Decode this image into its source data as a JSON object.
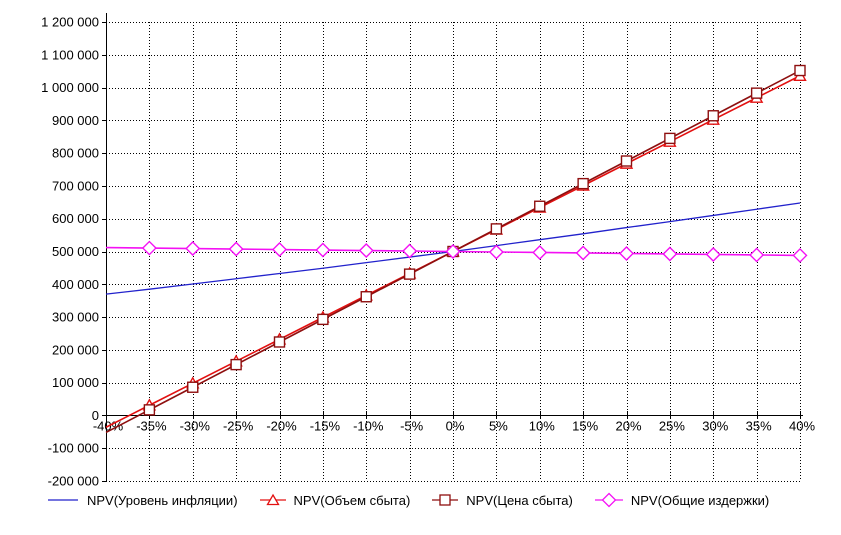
{
  "window": {
    "background": "#ffffff"
  },
  "chart_data": {
    "type": "line",
    "title": "",
    "xlabel": "",
    "ylabel": "",
    "legend_position": "bottom",
    "grid": {
      "horizontal": true,
      "vertical": true,
      "style": "dotted",
      "color": "#000000"
    },
    "x_axis": {
      "min": -40,
      "max": 40,
      "step": 5,
      "zero_line_value": 0,
      "unit": "%"
    },
    "y_axis": {
      "min": -200000,
      "max": 1200000,
      "step": 100000,
      "tick_labels_top_to_bottom": [
        "1 200 000",
        "1 100 000",
        "1 000 000",
        "900 000",
        "800 000",
        "700 000",
        "600 000",
        "500 000",
        "400 000",
        "300 000",
        "200 000",
        "100 000",
        "0",
        "-100 000",
        "-200 000"
      ]
    },
    "x_values": [
      -40,
      -35,
      -30,
      -25,
      -20,
      -15,
      -10,
      -5,
      0,
      5,
      10,
      15,
      20,
      25,
      30,
      35,
      40
    ],
    "x_tick_labels": [
      "-40%",
      "-35%",
      "-30%",
      "-25%",
      "-20%",
      "-15%",
      "-10%",
      "-5%",
      "0%",
      "5%",
      "10%",
      "15%",
      "20%",
      "25%",
      "30%",
      "35%",
      "40%"
    ],
    "series": [
      {
        "name": "NPV(Уровень инфляции)",
        "color": "#2222cc",
        "marker": "none",
        "markers_from_index": 0,
        "values": [
          370000,
          385000,
          401000,
          417000,
          433000,
          449000,
          466000,
          483000,
          500000,
          518000,
          536000,
          554000,
          573000,
          591000,
          610000,
          629000,
          648000
        ]
      },
      {
        "name": "NPV(Объем сбыта)",
        "color": "#e31010",
        "marker": "triangle",
        "markers_from_index": 1,
        "values": [
          -36000,
          31000,
          98000,
          165000,
          232000,
          299000,
          366000,
          433000,
          500000,
          567000,
          634000,
          701000,
          768000,
          835000,
          902000,
          969000,
          1036000
        ]
      },
      {
        "name": "NPV(Цена сбыта)",
        "color": "#8e0f0f",
        "marker": "square",
        "markers_from_index": 1,
        "values": [
          -52000,
          17000,
          86000,
          155000,
          224000,
          293000,
          362000,
          431000,
          500000,
          569000,
          638000,
          707000,
          776000,
          845000,
          914000,
          983000,
          1052000
        ]
      },
      {
        "name": "NPV(Общие издержки)",
        "color": "#f410f4",
        "marker": "diamond",
        "markers_from_index": 1,
        "values": [
          512000,
          510500,
          509000,
          507500,
          506000,
          504500,
          503000,
          501500,
          500000,
          498500,
          497000,
          495500,
          494000,
          492500,
          491000,
          489500,
          488000
        ]
      }
    ]
  }
}
